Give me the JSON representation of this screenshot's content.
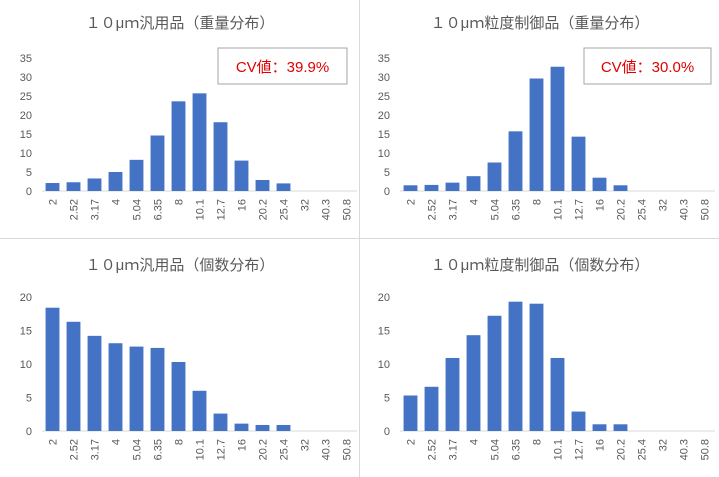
{
  "colors": {
    "bar": "#4472C4",
    "cv_text": "#E00000",
    "axis": "#d9d9d9",
    "tick_text": "#595959",
    "title_text": "#595959"
  },
  "chart_data": [
    {
      "type": "bar",
      "title": "１０μｍ汎用品（重量分布）",
      "categories": [
        "2",
        "2.52",
        "3.17",
        "4",
        "5.04",
        "6.35",
        "8",
        "10.1",
        "12.7",
        "16",
        "20.2",
        "25.4",
        "32",
        "40.3",
        "50.8"
      ],
      "values": [
        2.1,
        2.3,
        3.3,
        5,
        8.2,
        14.6,
        23.6,
        25.7,
        18.1,
        8,
        2.9,
        2,
        0,
        0,
        0
      ],
      "ylim": [
        0,
        35
      ],
      "yticks": [
        0,
        5,
        10,
        15,
        20,
        25,
        30,
        35
      ],
      "annotation": "CV値：39.9%",
      "xlabel": "",
      "ylabel": ""
    },
    {
      "type": "bar",
      "title": "１０μｍ粒度制御品（重量分布）",
      "categories": [
        "2",
        "2.52",
        "3.17",
        "4",
        "5.04",
        "6.35",
        "8",
        "10.1",
        "12.7",
        "16",
        "20.2",
        "25.4",
        "32",
        "40.3",
        "50.8"
      ],
      "values": [
        1.5,
        1.6,
        2.2,
        3.9,
        7.5,
        15.7,
        29.6,
        32.7,
        14.3,
        3.5,
        1.5,
        0,
        0,
        0,
        0
      ],
      "ylim": [
        0,
        35
      ],
      "yticks": [
        0,
        5,
        10,
        15,
        20,
        25,
        30,
        35
      ],
      "annotation": "CV値：30.0%",
      "xlabel": "",
      "ylabel": ""
    },
    {
      "type": "bar",
      "title": "１０μｍ汎用品（個数分布）",
      "categories": [
        "2",
        "2.52",
        "3.17",
        "4",
        "5.04",
        "6.35",
        "8",
        "10.1",
        "12.7",
        "16",
        "20.2",
        "25.4",
        "32",
        "40.3",
        "50.8"
      ],
      "values": [
        18.4,
        16.3,
        14.2,
        13.1,
        12.6,
        12.4,
        10.3,
        6,
        2.6,
        1.1,
        0.9,
        0.9,
        0,
        0,
        0
      ],
      "ylim": [
        0,
        20
      ],
      "yticks": [
        0,
        5,
        10,
        15,
        20
      ],
      "annotation": "",
      "xlabel": "",
      "ylabel": ""
    },
    {
      "type": "bar",
      "title": "１０μｍ粒度制御品（個数分布）",
      "categories": [
        "2",
        "2.52",
        "3.17",
        "4",
        "5.04",
        "6.35",
        "8",
        "10.1",
        "12.7",
        "16",
        "20.2",
        "25.4",
        "32",
        "40.3",
        "50.8"
      ],
      "values": [
        5.3,
        6.6,
        10.9,
        14.3,
        17.2,
        19.3,
        19,
        10.9,
        2.9,
        1,
        1,
        0,
        0,
        0,
        0
      ],
      "ylim": [
        0,
        20
      ],
      "yticks": [
        0,
        5,
        10,
        15,
        20
      ],
      "annotation": "",
      "xlabel": "",
      "ylabel": ""
    }
  ]
}
